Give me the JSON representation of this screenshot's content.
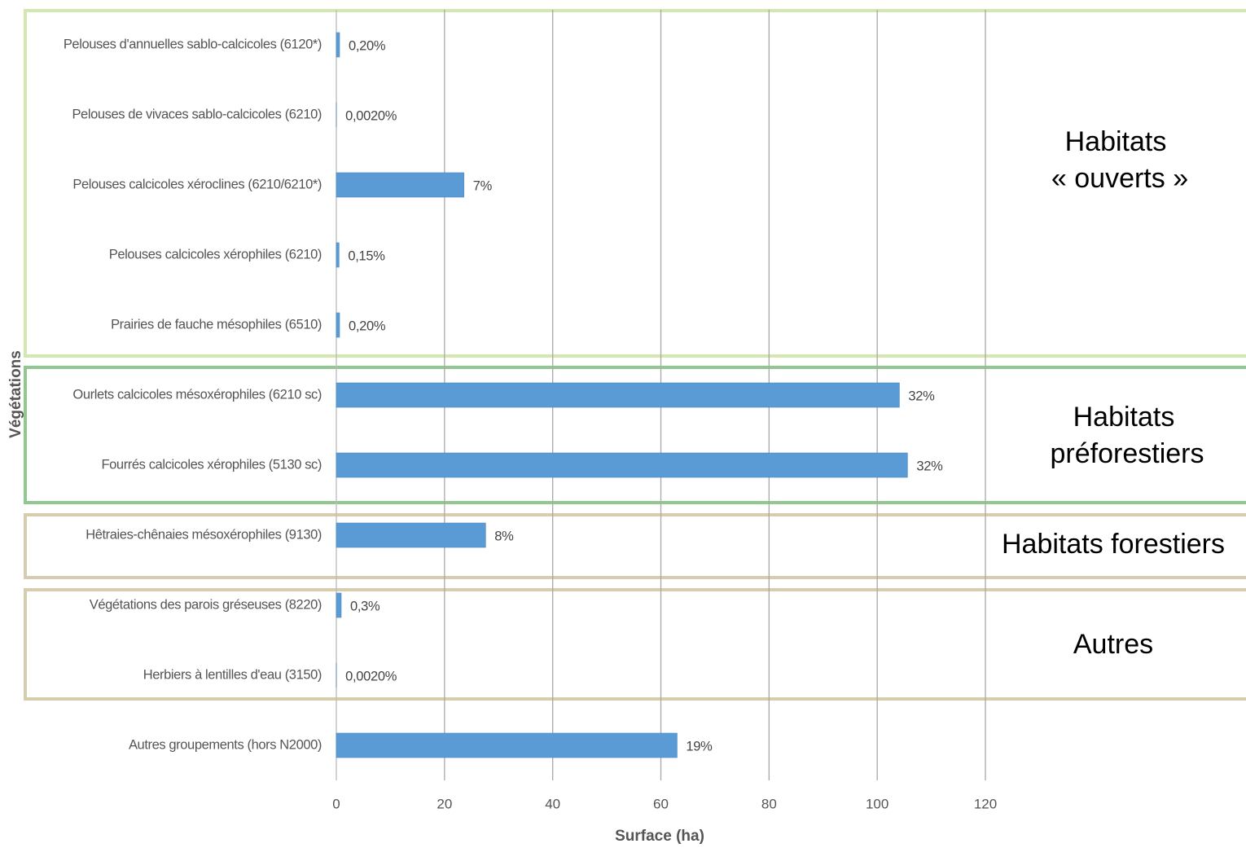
{
  "chart_data": {
    "type": "barh",
    "x_label": "Surface (ha)",
    "y_label": "Végétations",
    "categories": [
      "Pelouses d'annuelles sablo-calcicoles (6120*)",
      "Pelouses de vivaces sablo-calcicoles (6210)",
      "Pelouses calcicoles xéroclines (6210/6210*)",
      "Pelouses calcicoles xérophiles (6210)",
      "Prairies de fauche mésophiles (6510)",
      "Ourlets calcicoles mésoxérophiles (6210 sc)",
      "Fourrés calcicoles xérophiles (5130 sc)",
      "Hêtraies-chênaies mésoxérophiles (9130)",
      "Végétations des parois gréseuses (8220)",
      "Herbiers à lentilles d'eau (3150)",
      "Autres groupements (hors N2000)"
    ],
    "values": [
      0.6,
      0.01,
      23.6,
      0.5,
      0.6,
      104.1,
      105.6,
      27.6,
      0.9,
      0.01,
      63
    ],
    "percent_labels": [
      "0,20%",
      "0,0020%",
      "7%",
      "0,15%",
      "0,20%",
      "32%",
      "32%",
      "8%",
      "0,3%",
      "0,0020%",
      "19%"
    ],
    "color": "#5b9bd5",
    "xlim": [
      0,
      120
    ],
    "xticks": [
      0,
      20,
      40,
      60,
      80,
      100,
      120
    ],
    "grid": true,
    "groups": [
      {
        "lines": [
          "Habitats",
          "« ouverts »"
        ]
      },
      {
        "lines": [
          "Habitats",
          "préforestiers"
        ]
      },
      {
        "lines": [
          "Habitats forestiers"
        ]
      },
      {
        "lines": [
          "Autres"
        ]
      }
    ]
  }
}
